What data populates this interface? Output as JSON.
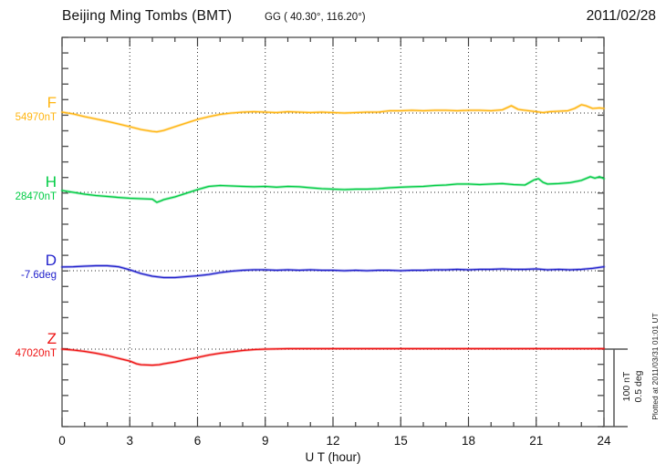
{
  "header": {
    "station_title": "Beijing Ming Tombs (BMT)",
    "coordinates": "GG ( 40.30°, 116.20°)",
    "date": "2011/02/28"
  },
  "footer": {
    "xlabel": "U T (hour)",
    "plotted_at": "Plotted at 2011/03/31 01:01 UT"
  },
  "scale_bar": {
    "labels": [
      "100 nT",
      "0.5 deg"
    ],
    "nT": 100,
    "deg": 0.5
  },
  "colors": {
    "frame": "#3c3c3c",
    "ticks": "#555555",
    "grid_dots": "#2a2a2a",
    "scale_bar": "#555555",
    "text": "#111111"
  },
  "chart_data": {
    "type": "line",
    "title": "Beijing Ming Tombs (BMT) magnetogram 2011/02/28",
    "xlabel": "U T (hour)",
    "xlim": [
      0,
      24
    ],
    "x_ticks": [
      0,
      3,
      6,
      9,
      12,
      15,
      18,
      21,
      24
    ],
    "x_minor_step_hours": 1,
    "grid": "dotted vertical lines every 3 h; dotted horizontal line at each channel baseline",
    "y_tick_interval": "20 nT (0.1 deg for D)",
    "channel_spacing": "100 nT between baselines",
    "series": [
      {
        "name": "F",
        "unit": "nT",
        "baseline_label": "54970nT",
        "color": "#FFB511",
        "points": [
          [
            0,
            1.2
          ],
          [
            0.5,
            -1.2
          ],
          [
            1,
            -4.7
          ],
          [
            1.5,
            -7.6
          ],
          [
            2,
            -10.6
          ],
          [
            2.5,
            -14.1
          ],
          [
            3,
            -17.6
          ],
          [
            3.5,
            -21.2
          ],
          [
            4,
            -23.5
          ],
          [
            4.2,
            -24.1
          ],
          [
            4.5,
            -22.4
          ],
          [
            5,
            -17.6
          ],
          [
            5.5,
            -12.9
          ],
          [
            6,
            -8.2
          ],
          [
            6.5,
            -4.7
          ],
          [
            7,
            -1.8
          ],
          [
            7.5,
            0
          ],
          [
            8,
            1.2
          ],
          [
            8.5,
            1.8
          ],
          [
            9,
            1.2
          ],
          [
            9.5,
            0.6
          ],
          [
            10,
            1.8
          ],
          [
            10.5,
            1.2
          ],
          [
            11,
            0.6
          ],
          [
            11.5,
            1.2
          ],
          [
            12,
            0.6
          ],
          [
            12.5,
            0
          ],
          [
            13,
            0.6
          ],
          [
            13.5,
            1.2
          ],
          [
            14,
            1.2
          ],
          [
            14.5,
            2.9
          ],
          [
            15,
            2.9
          ],
          [
            15.5,
            3.5
          ],
          [
            16,
            2.9
          ],
          [
            16.5,
            3.5
          ],
          [
            17,
            3.5
          ],
          [
            17.5,
            2.9
          ],
          [
            18,
            3.5
          ],
          [
            18.5,
            3.5
          ],
          [
            19,
            2.9
          ],
          [
            19.5,
            4.1
          ],
          [
            19.9,
            9.4
          ],
          [
            20.2,
            4.7
          ],
          [
            20.5,
            3.5
          ],
          [
            21,
            1.8
          ],
          [
            21.3,
            0.6
          ],
          [
            21.6,
            1.8
          ],
          [
            22,
            2.4
          ],
          [
            22.4,
            2.9
          ],
          [
            22.7,
            5.9
          ],
          [
            23,
            10.6
          ],
          [
            23.2,
            9.4
          ],
          [
            23.5,
            5.9
          ],
          [
            23.8,
            6.5
          ],
          [
            24,
            5.9
          ]
        ]
      },
      {
        "name": "H",
        "unit": "nT",
        "baseline_label": "28470nT",
        "color": "#00CC44",
        "points": [
          [
            0,
            2.4
          ],
          [
            0.5,
            0
          ],
          [
            1,
            -2.4
          ],
          [
            1.5,
            -4.1
          ],
          [
            2,
            -5.3
          ],
          [
            2.5,
            -6.5
          ],
          [
            3,
            -7.6
          ],
          [
            3.5,
            -8.2
          ],
          [
            4,
            -8.8
          ],
          [
            4.2,
            -12.9
          ],
          [
            4.4,
            -10.6
          ],
          [
            4.5,
            -9.4
          ],
          [
            5,
            -5.9
          ],
          [
            5.5,
            -1.2
          ],
          [
            6,
            3.5
          ],
          [
            6.5,
            7.6
          ],
          [
            7,
            8.8
          ],
          [
            7.5,
            8.2
          ],
          [
            8,
            7.6
          ],
          [
            8.5,
            7.1
          ],
          [
            9,
            7.6
          ],
          [
            9.5,
            6.5
          ],
          [
            10,
            7.6
          ],
          [
            10.5,
            7.1
          ],
          [
            11,
            5.9
          ],
          [
            11.5,
            4.7
          ],
          [
            12,
            4.1
          ],
          [
            12.5,
            3.5
          ],
          [
            13,
            4.1
          ],
          [
            13.5,
            4.1
          ],
          [
            14,
            4.7
          ],
          [
            14.5,
            5.9
          ],
          [
            15,
            6.5
          ],
          [
            15.5,
            7.1
          ],
          [
            16,
            7.6
          ],
          [
            16.5,
            8.8
          ],
          [
            17,
            9.4
          ],
          [
            17.5,
            10.6
          ],
          [
            18,
            10.6
          ],
          [
            18.5,
            10
          ],
          [
            19,
            10.6
          ],
          [
            19.5,
            11.2
          ],
          [
            20,
            10
          ],
          [
            20.5,
            9.4
          ],
          [
            20.9,
            15.9
          ],
          [
            21.1,
            17.6
          ],
          [
            21.3,
            12.9
          ],
          [
            21.5,
            10.6
          ],
          [
            22,
            11.2
          ],
          [
            22.5,
            12.4
          ],
          [
            23,
            15.3
          ],
          [
            23.4,
            20
          ],
          [
            23.6,
            18.2
          ],
          [
            23.8,
            20
          ],
          [
            24,
            17.6
          ]
        ]
      },
      {
        "name": "D",
        "unit": "deg",
        "baseline_label": "-7.6deg",
        "color": "#2222CC",
        "points": [
          [
            0,
            0.024
          ],
          [
            0.5,
            0.026
          ],
          [
            1,
            0.029
          ],
          [
            1.5,
            0.032
          ],
          [
            2,
            0.032
          ],
          [
            2.5,
            0.026
          ],
          [
            3,
            0.006
          ],
          [
            3.5,
            -0.018
          ],
          [
            4,
            -0.035
          ],
          [
            4.5,
            -0.044
          ],
          [
            5,
            -0.044
          ],
          [
            5.5,
            -0.038
          ],
          [
            6,
            -0.032
          ],
          [
            6.5,
            -0.024
          ],
          [
            7,
            -0.012
          ],
          [
            7.5,
            -0.003
          ],
          [
            8,
            0.003
          ],
          [
            8.5,
            0.006
          ],
          [
            9,
            0.006
          ],
          [
            9.5,
            0.003
          ],
          [
            10,
            0.006
          ],
          [
            10.5,
            0.003
          ],
          [
            11,
            0.006
          ],
          [
            11.5,
            0.003
          ],
          [
            12,
            0.003
          ],
          [
            12.5,
            0
          ],
          [
            13,
            0.003
          ],
          [
            13.5,
            0
          ],
          [
            14,
            0.003
          ],
          [
            14.5,
            0.003
          ],
          [
            15,
            0
          ],
          [
            15.5,
            0.003
          ],
          [
            16,
            0.003
          ],
          [
            16.5,
            0.006
          ],
          [
            17,
            0.006
          ],
          [
            17.5,
            0.009
          ],
          [
            18,
            0.006
          ],
          [
            18.5,
            0.009
          ],
          [
            19,
            0.009
          ],
          [
            19.5,
            0.012
          ],
          [
            20,
            0.009
          ],
          [
            20.5,
            0.009
          ],
          [
            21,
            0.012
          ],
          [
            21.5,
            0.006
          ],
          [
            22,
            0.009
          ],
          [
            22.5,
            0.006
          ],
          [
            23,
            0.009
          ],
          [
            23.5,
            0.015
          ],
          [
            24,
            0.026
          ]
        ]
      },
      {
        "name": "Z",
        "unit": "nT",
        "baseline_label": "47020nT",
        "color": "#EE1111",
        "points": [
          [
            0,
            0
          ],
          [
            0.5,
            -1.2
          ],
          [
            1,
            -2.9
          ],
          [
            1.5,
            -5.3
          ],
          [
            2,
            -8.2
          ],
          [
            2.5,
            -11.8
          ],
          [
            3,
            -15.3
          ],
          [
            3.3,
            -18.8
          ],
          [
            3.5,
            -20
          ],
          [
            4,
            -20.6
          ],
          [
            4.3,
            -20
          ],
          [
            4.5,
            -18.8
          ],
          [
            5,
            -16.5
          ],
          [
            5.5,
            -13.5
          ],
          [
            6,
            -10.6
          ],
          [
            6.5,
            -7.6
          ],
          [
            7,
            -5.3
          ],
          [
            7.5,
            -3.5
          ],
          [
            8,
            -1.8
          ],
          [
            8.5,
            -0.6
          ],
          [
            9,
            0
          ],
          [
            10,
            0.6
          ],
          [
            11,
            0.6
          ],
          [
            12,
            0.6
          ],
          [
            13,
            0.6
          ],
          [
            14,
            0.6
          ],
          [
            15,
            0.6
          ],
          [
            16,
            0.6
          ],
          [
            17,
            0.6
          ],
          [
            18,
            0.6
          ],
          [
            19,
            0.6
          ],
          [
            20,
            0.6
          ],
          [
            21,
            0.6
          ],
          [
            22,
            0.6
          ],
          [
            23,
            0.6
          ],
          [
            24,
            0.6
          ]
        ]
      }
    ]
  }
}
